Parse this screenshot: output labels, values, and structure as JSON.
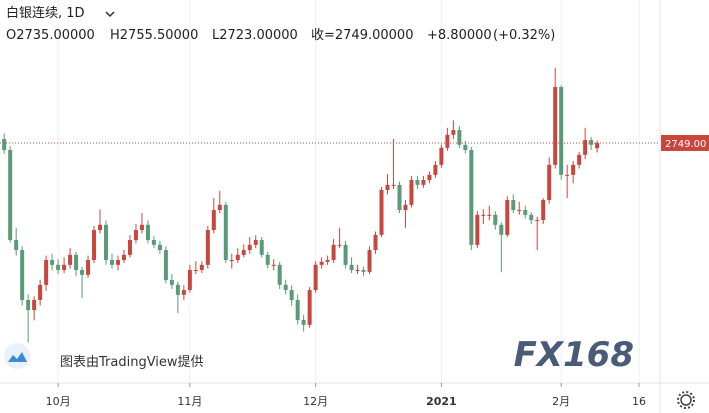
{
  "chart_data": {
    "type": "candlestick",
    "title": "白银连续, 1D",
    "legend": {
      "open": "O2735.00000",
      "high": "H2755.50000",
      "low": "L2723.00000",
      "close": "收=2749.00000",
      "change": "+8.80000",
      "change_pct": "(+0.32%)"
    },
    "attribution": "图表由TradingView提供",
    "watermark": "FX168",
    "up_color": "#c9463d",
    "down_color": "#5a9a78",
    "last_price": {
      "value": 2749,
      "label": "2749.00"
    },
    "last_price_color": "#c9463d",
    "ylim": [
      2101,
      3135
    ],
    "xlim": [
      -0.7,
      109.5
    ],
    "xticks": [
      {
        "value": 9,
        "label": "10月"
      },
      {
        "value": 31,
        "label": "11月"
      },
      {
        "value": 52,
        "label": "12月"
      },
      {
        "value": 73,
        "label": "2021"
      },
      {
        "value": 93,
        "label": "2月"
      },
      {
        "value": 106,
        "label": "16"
      }
    ],
    "grid": true,
    "categories": [
      null,
      null,
      null,
      null,
      null,
      null,
      null,
      null,
      null,
      null,
      null,
      null,
      null,
      null,
      null,
      null,
      null,
      null,
      null,
      null,
      null,
      null,
      null,
      null,
      null,
      null,
      null,
      null,
      null,
      null,
      null,
      null,
      null,
      null,
      null,
      null,
      null,
      null,
      null,
      null,
      null,
      null,
      null,
      null,
      null,
      null,
      null,
      null,
      null,
      null,
      null,
      null,
      null,
      null,
      null,
      null,
      null,
      null,
      null,
      null,
      null,
      null,
      null,
      null,
      null,
      null,
      null,
      null,
      null,
      null,
      null,
      null,
      null,
      null,
      null,
      null,
      null,
      null,
      null,
      null,
      null,
      null,
      null,
      null,
      null,
      null,
      null,
      null,
      null,
      null,
      null,
      null,
      null,
      null,
      null,
      null,
      null,
      null,
      null,
      null
    ],
    "values": [
      [
        2760,
        2775,
        2720,
        2730
      ],
      [
        2730,
        2740,
        2480,
        2487
      ],
      [
        2487,
        2520,
        2445,
        2460
      ],
      [
        2460,
        2470,
        2310,
        2325
      ],
      [
        2325,
        2340,
        2210,
        2298
      ],
      [
        2298,
        2335,
        2270,
        2325
      ],
      [
        2325,
        2380,
        2310,
        2366
      ],
      [
        2366,
        2445,
        2350,
        2433
      ],
      [
        2433,
        2450,
        2405,
        2420
      ],
      [
        2420,
        2435,
        2395,
        2406
      ],
      [
        2406,
        2440,
        2398,
        2420
      ],
      [
        2420,
        2465,
        2410,
        2447
      ],
      [
        2447,
        2455,
        2390,
        2406
      ],
      [
        2406,
        2415,
        2330,
        2393
      ],
      [
        2393,
        2445,
        2385,
        2433
      ],
      [
        2433,
        2525,
        2425,
        2514
      ],
      [
        2514,
        2570,
        2505,
        2528
      ],
      [
        2528,
        2540,
        2420,
        2433
      ],
      [
        2433,
        2450,
        2410,
        2420
      ],
      [
        2420,
        2445,
        2405,
        2433
      ],
      [
        2433,
        2460,
        2425,
        2447
      ],
      [
        2447,
        2500,
        2440,
        2487
      ],
      [
        2487,
        2530,
        2478,
        2514
      ],
      [
        2514,
        2560,
        2505,
        2528
      ],
      [
        2528,
        2540,
        2478,
        2487
      ],
      [
        2487,
        2498,
        2465,
        2474
      ],
      [
        2474,
        2485,
        2450,
        2460
      ],
      [
        2460,
        2470,
        2370,
        2379
      ],
      [
        2379,
        2395,
        2355,
        2366
      ],
      [
        2366,
        2375,
        2290,
        2339
      ],
      [
        2339,
        2365,
        2325,
        2352
      ],
      [
        2352,
        2420,
        2345,
        2406
      ],
      [
        2406,
        2430,
        2395,
        2406
      ],
      [
        2406,
        2430,
        2398,
        2420
      ],
      [
        2420,
        2525,
        2410,
        2514
      ],
      [
        2514,
        2600,
        2505,
        2568
      ],
      [
        2568,
        2620,
        2560,
        2582
      ],
      [
        2582,
        2590,
        2425,
        2433
      ],
      [
        2433,
        2450,
        2410,
        2433
      ],
      [
        2433,
        2465,
        2425,
        2447
      ],
      [
        2447,
        2475,
        2440,
        2460
      ],
      [
        2460,
        2495,
        2450,
        2474
      ],
      [
        2474,
        2500,
        2465,
        2487
      ],
      [
        2487,
        2495,
        2440,
        2447
      ],
      [
        2447,
        2455,
        2410,
        2420
      ],
      [
        2420,
        2435,
        2405,
        2420
      ],
      [
        2420,
        2428,
        2355,
        2366
      ],
      [
        2366,
        2380,
        2340,
        2352
      ],
      [
        2352,
        2365,
        2310,
        2325
      ],
      [
        2325,
        2340,
        2260,
        2271
      ],
      [
        2271,
        2285,
        2240,
        2258
      ],
      [
        2258,
        2360,
        2250,
        2352
      ],
      [
        2352,
        2430,
        2345,
        2420
      ],
      [
        2420,
        2440,
        2410,
        2428
      ],
      [
        2428,
        2445,
        2420,
        2433
      ],
      [
        2433,
        2490,
        2425,
        2474
      ],
      [
        2474,
        2520,
        2465,
        2474
      ],
      [
        2474,
        2485,
        2410,
        2420
      ],
      [
        2420,
        2440,
        2398,
        2406
      ],
      [
        2406,
        2420,
        2395,
        2406
      ],
      [
        2406,
        2415,
        2390,
        2401
      ],
      [
        2401,
        2470,
        2395,
        2460
      ],
      [
        2460,
        2510,
        2450,
        2501
      ],
      [
        2501,
        2630,
        2495,
        2622
      ],
      [
        2622,
        2665,
        2610,
        2636
      ],
      [
        2636,
        2760,
        2625,
        2636
      ],
      [
        2636,
        2645,
        2560,
        2568
      ],
      [
        2568,
        2595,
        2520,
        2582
      ],
      [
        2582,
        2660,
        2575,
        2649
      ],
      [
        2649,
        2660,
        2625,
        2636
      ],
      [
        2636,
        2660,
        2628,
        2649
      ],
      [
        2649,
        2672,
        2640,
        2663
      ],
      [
        2663,
        2700,
        2655,
        2690
      ],
      [
        2690,
        2745,
        2682,
        2736
      ],
      [
        2736,
        2790,
        2728,
        2771
      ],
      [
        2771,
        2810,
        2760,
        2784
      ],
      [
        2784,
        2795,
        2735,
        2744
      ],
      [
        2744,
        2755,
        2720,
        2730
      ],
      [
        2730,
        2738,
        2460,
        2474
      ],
      [
        2474,
        2565,
        2465,
        2555
      ],
      [
        2555,
        2570,
        2530,
        2555
      ],
      [
        2555,
        2580,
        2540,
        2555
      ],
      [
        2555,
        2565,
        2515,
        2528
      ],
      [
        2528,
        2535,
        2400,
        2501
      ],
      [
        2501,
        2605,
        2495,
        2595
      ],
      [
        2595,
        2610,
        2560,
        2568
      ],
      [
        2568,
        2590,
        2555,
        2568
      ],
      [
        2568,
        2580,
        2545,
        2555
      ],
      [
        2555,
        2562,
        2530,
        2541
      ],
      [
        2541,
        2550,
        2460,
        2541
      ],
      [
        2541,
        2600,
        2530,
        2595
      ],
      [
        2595,
        2710,
        2585,
        2690
      ],
      [
        2690,
        2952,
        2680,
        2900
      ],
      [
        2900,
        2905,
        2650,
        2663
      ],
      [
        2663,
        2690,
        2600,
        2663
      ],
      [
        2663,
        2700,
        2640,
        2690
      ],
      [
        2690,
        2725,
        2680,
        2717
      ],
      [
        2717,
        2790,
        2705,
        2757
      ],
      [
        2757,
        2765,
        2730,
        2744
      ],
      [
        2735,
        2755.5,
        2723,
        2749
      ]
    ]
  }
}
